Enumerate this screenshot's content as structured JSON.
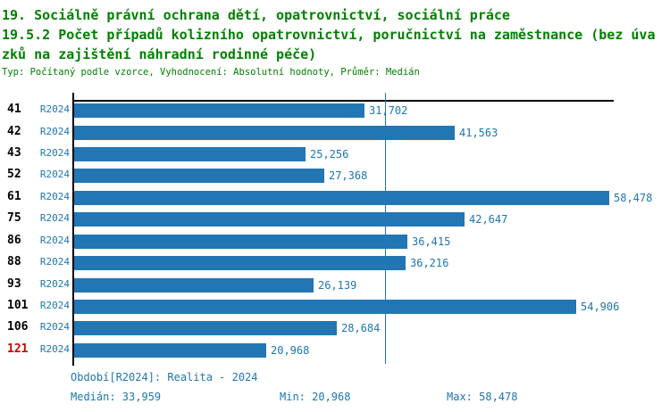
{
  "header": {
    "line1": "19. Sociálně právní ochrana dětí, opatrovnictví, sociální práce",
    "line2": "19.5.2 Počet případů kolizního opatrovnictví, poručnictví na zaměstnance (bez úva",
    "line3": "zků na zajištění náhradní rodinné péče)",
    "meta": "Typ: Počítaný podle vzorce, Vyhodnocení: Absolutní hodnoty, Průměr: Medián"
  },
  "chart_data": {
    "type": "bar",
    "orientation": "horizontal",
    "categories": [
      "41",
      "42",
      "43",
      "52",
      "61",
      "75",
      "86",
      "88",
      "93",
      "101",
      "106",
      "121"
    ],
    "period_label": "R2024",
    "values": [
      31702,
      41563,
      25256,
      27368,
      58478,
      42647,
      36415,
      36216,
      26139,
      54906,
      28684,
      20968
    ],
    "value_labels": [
      "31,702",
      "41,563",
      "25,256",
      "27,368",
      "58,478",
      "42,647",
      "36,415",
      "36,216",
      "26,139",
      "54,906",
      "28,684",
      "20,968"
    ],
    "median": 33959,
    "xlim": [
      0,
      59200
    ],
    "grid": false,
    "legend": "none",
    "highlighted_category": "121",
    "median_line": true
  },
  "footer": {
    "period": "Období[R2024]: Realita - 2024",
    "median": "Medián: 33,959",
    "min": "Min: 20,968",
    "max": "Max: 58,478"
  },
  "colors": {
    "title_green": "#008000",
    "bar_blue": "#2276b4",
    "text_blue": "#1d76ae",
    "axis_black": "#000000",
    "highlight_red": "#cc0000"
  }
}
